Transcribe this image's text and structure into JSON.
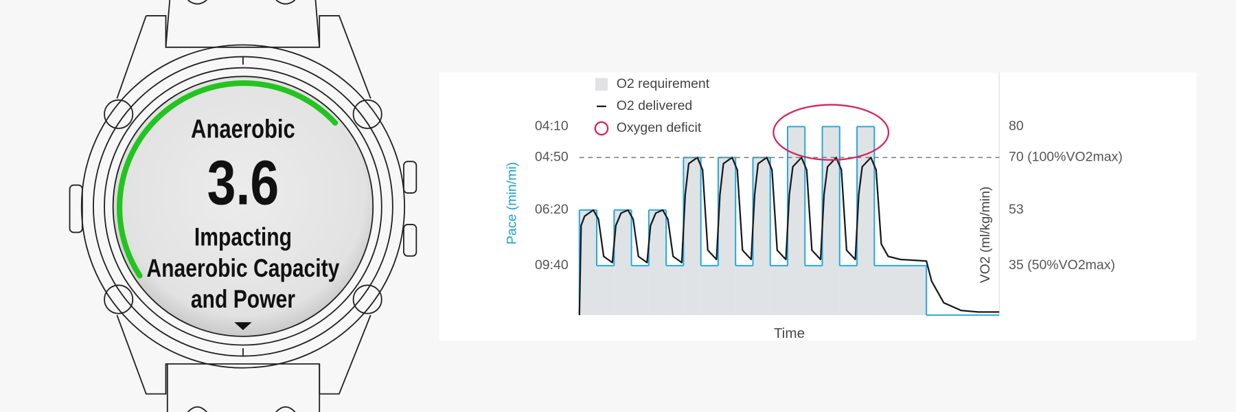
{
  "watch": {
    "title": "Anaerobic",
    "value": "3.6",
    "lines": [
      "Impacting",
      "Anaerobic Capacity",
      "and Power"
    ]
  },
  "chart_data": {
    "type": "step",
    "x_label": "Time",
    "y_label": "VO2 (ml/kg/min)",
    "pace_label": "Pace (min/mi)",
    "xlim": [
      0,
      24.2
    ],
    "ylim": [
      19,
      97
    ],
    "yticks": [
      80,
      {
        "value": 70,
        "label": "70 (100%VO2max)"
      },
      53,
      {
        "value": 35,
        "label": "35 (50%VO2max)"
      }
    ],
    "pace_ticks": [
      {
        "value": 80,
        "label": "04:10"
      },
      {
        "value": 70,
        "label": "04:50"
      },
      {
        "value": 53,
        "label": "06:20"
      },
      {
        "value": 35,
        "label": "09:40"
      }
    ],
    "reference_line": 70,
    "legend": "top-left",
    "series": [
      {
        "name": "O2 requirement",
        "color": "#29a9e0",
        "fill": "#dfe3e6",
        "x": [
          0,
          1,
          2,
          3,
          4,
          5,
          6,
          7,
          8,
          9,
          10,
          11,
          12,
          13,
          14,
          15,
          16,
          17,
          20
        ],
        "values": [
          53,
          35,
          53,
          35,
          53,
          35,
          70,
          35,
          70,
          35,
          70,
          35,
          80,
          35,
          80,
          35,
          80,
          35,
          19
        ]
      },
      {
        "name": "O2 delivered",
        "color": "#1a1a1a",
        "x": [
          0,
          0.1,
          0.3,
          0.8,
          1.1,
          1.4,
          1.9,
          2.1,
          2.4,
          2.8,
          3.1,
          3.4,
          3.9,
          4.1,
          4.4,
          4.8,
          5.1,
          5.4,
          5.9,
          6.1,
          6.3,
          6.8,
          7.1,
          7.4,
          7.9,
          8.1,
          8.3,
          8.8,
          9.1,
          9.4,
          9.9,
          10.1,
          10.3,
          10.8,
          11.1,
          11.4,
          11.9,
          12.1,
          12.3,
          12.8,
          13.1,
          13.4,
          13.9,
          14.1,
          14.3,
          14.8,
          15.1,
          15.4,
          15.9,
          16.1,
          16.3,
          16.8,
          17.1,
          17.4,
          17.8,
          18.5,
          20,
          20.3,
          21,
          22,
          23,
          24.2
        ],
        "values": [
          19,
          48,
          51,
          53,
          50,
          38,
          36,
          48,
          52,
          53,
          50,
          38,
          36,
          48,
          52,
          53,
          50,
          38,
          36,
          58,
          68,
          70,
          66,
          40,
          37,
          58,
          68,
          70,
          66,
          40,
          37,
          58,
          68,
          70,
          66,
          40,
          37,
          58,
          67,
          70,
          66,
          40,
          37,
          58,
          67,
          70,
          66,
          40,
          37,
          58,
          67,
          70,
          66,
          42,
          38,
          37,
          36.5,
          30,
          23,
          20.5,
          20,
          20
        ]
      }
    ],
    "annotation": {
      "text": "Oxygen deficit",
      "color": "#d6245a"
    }
  }
}
